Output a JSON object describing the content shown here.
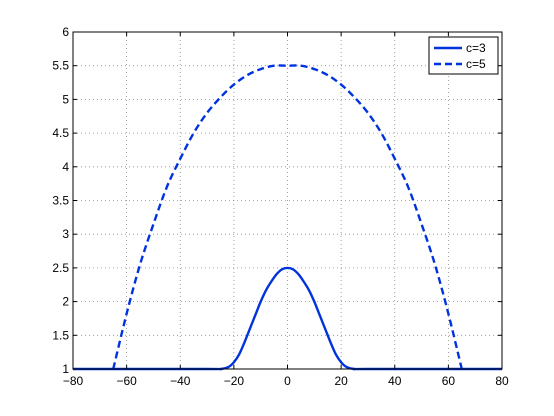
{
  "chart_data": {
    "type": "line",
    "title": "",
    "xlabel": "",
    "ylabel": "",
    "xlim": [
      -80,
      80
    ],
    "ylim": [
      1,
      6
    ],
    "xticks": [
      -80,
      -60,
      -40,
      -20,
      0,
      20,
      40,
      60,
      80
    ],
    "xtick_labels": [
      "−80",
      "−60",
      "−40",
      "−20",
      "0",
      "20",
      "40",
      "60",
      "80"
    ],
    "yticks": [
      1,
      1.5,
      2,
      2.5,
      3,
      3.5,
      4,
      4.5,
      5,
      5.5,
      6
    ],
    "ytick_labels": [
      "1",
      "1.5",
      "2",
      "2.5",
      "3",
      "3.5",
      "4",
      "4.5",
      "5",
      "5.5",
      "6"
    ],
    "grid": true,
    "grid_style": "dotted",
    "legend_position": "top-right",
    "series": [
      {
        "name": "c=3",
        "style": "solid",
        "color": "#0033dd",
        "x": [
          -80,
          -30,
          -25,
          -22,
          -20,
          -18,
          -16,
          -14,
          -12,
          -10,
          -8,
          -6,
          -4,
          -2,
          0,
          2,
          4,
          6,
          8,
          10,
          12,
          14,
          16,
          18,
          20,
          22,
          25,
          30,
          80
        ],
        "y": [
          1.0,
          1.0,
          1.0,
          1.03,
          1.1,
          1.22,
          1.4,
          1.6,
          1.8,
          2.0,
          2.17,
          2.3,
          2.41,
          2.48,
          2.5,
          2.48,
          2.41,
          2.3,
          2.17,
          2.0,
          1.8,
          1.6,
          1.4,
          1.22,
          1.1,
          1.03,
          1.0,
          1.0,
          1.0
        ]
      },
      {
        "name": "c=5",
        "style": "dashed",
        "color": "#0033dd",
        "x": [
          -65,
          -60,
          -55,
          -50,
          -45,
          -40,
          -35,
          -30,
          -25,
          -20,
          -15,
          -10,
          -5,
          0,
          5,
          10,
          15,
          20,
          25,
          30,
          35,
          40,
          45,
          50,
          55,
          60,
          65
        ],
        "y": [
          1.0,
          1.82,
          2.55,
          3.15,
          3.7,
          4.12,
          4.5,
          4.8,
          5.03,
          5.22,
          5.36,
          5.45,
          5.5,
          5.5,
          5.5,
          5.45,
          5.36,
          5.22,
          5.03,
          4.8,
          4.5,
          4.12,
          3.7,
          3.15,
          2.55,
          1.82,
          1.0
        ]
      }
    ]
  }
}
